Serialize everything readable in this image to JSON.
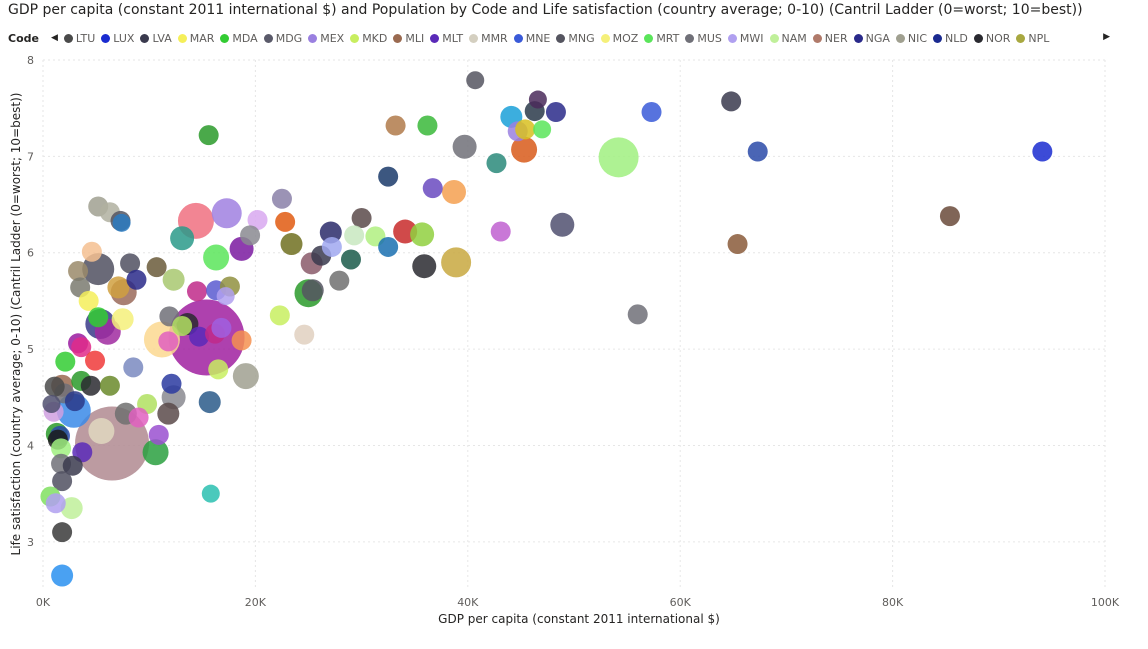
{
  "title": "GDP per capita (constant 2011 international $) and Population by Code and Life satisfaction (country average; 0-10) (Cantril Ladder (0=worst; 10=best))",
  "legend": {
    "label": "Code",
    "items": [
      {
        "code": "LTU",
        "color": "#4a4a4a"
      },
      {
        "code": "LUX",
        "color": "#1a2bd0"
      },
      {
        "code": "LVA",
        "color": "#3a3a4e"
      },
      {
        "code": "MAR",
        "color": "#f5ef5a"
      },
      {
        "code": "MDA",
        "color": "#33cc33"
      },
      {
        "code": "MDG",
        "color": "#5a5a6a"
      },
      {
        "code": "MEX",
        "color": "#9a80e0"
      },
      {
        "code": "MKD",
        "color": "#c8ee60"
      },
      {
        "code": "MLI",
        "color": "#9a6a50"
      },
      {
        "code": "MLT",
        "color": "#5a2ab8"
      },
      {
        "code": "MMR",
        "color": "#d4cfc0"
      },
      {
        "code": "MNE",
        "color": "#3a5ad8"
      },
      {
        "code": "MNG",
        "color": "#555560"
      },
      {
        "code": "MOZ",
        "color": "#f5f07a"
      },
      {
        "code": "MRT",
        "color": "#5ae55a"
      },
      {
        "code": "MUS",
        "color": "#707078"
      },
      {
        "code": "MWI",
        "color": "#b0a0f0"
      },
      {
        "code": "NAM",
        "color": "#c0f09a"
      },
      {
        "code": "NER",
        "color": "#b07a6a"
      },
      {
        "code": "NGA",
        "color": "#2a2a8a"
      },
      {
        "code": "NIC",
        "color": "#a0a090"
      },
      {
        "code": "NLD",
        "color": "#1a2a90"
      },
      {
        "code": "NOR",
        "color": "#2a2a30"
      },
      {
        "code": "NPL",
        "color": "#a8a840"
      }
    ]
  },
  "chart_data": {
    "type": "scatter",
    "xlabel": "GDP per capita (constant 2011 international $)",
    "ylabel": "Life satisfaction (country average; 0-10) (Cantril Ladder (0=worst; 10=best))",
    "xlim": [
      0,
      100000
    ],
    "ylim": [
      2.5,
      8
    ],
    "x_ticks": [
      0,
      20000,
      40000,
      60000,
      80000,
      100000
    ],
    "x_tick_labels": [
      "0K",
      "20K",
      "40K",
      "60K",
      "80K",
      "100K"
    ],
    "y_ticks": [
      3,
      4,
      5,
      6,
      7,
      8
    ],
    "y_tick_labels": [
      "3",
      "4",
      "5",
      "6",
      "7",
      "8"
    ],
    "grid": true,
    "size_encoding": "Population",
    "points": [
      {
        "x": 40700,
        "y": 7.79,
        "r": 9,
        "color": "#555560"
      },
      {
        "x": 46600,
        "y": 7.59,
        "r": 9,
        "color": "#4a2a5a"
      },
      {
        "x": 48300,
        "y": 7.46,
        "r": 10,
        "color": "#2a2a8a"
      },
      {
        "x": 46300,
        "y": 7.47,
        "r": 10,
        "color": "#2a3a4a"
      },
      {
        "x": 44100,
        "y": 7.41,
        "r": 11,
        "color": "#1aa0d8"
      },
      {
        "x": 57300,
        "y": 7.46,
        "r": 10,
        "color": "#3a5ad8"
      },
      {
        "x": 64800,
        "y": 7.57,
        "r": 10,
        "color": "#3a3a4e"
      },
      {
        "x": 15600,
        "y": 7.22,
        "r": 10,
        "color": "#2a9a2a"
      },
      {
        "x": 33200,
        "y": 7.32,
        "r": 10,
        "color": "#b07a4a"
      },
      {
        "x": 36200,
        "y": 7.32,
        "r": 10,
        "color": "#3ab83a"
      },
      {
        "x": 47000,
        "y": 7.28,
        "r": 9,
        "color": "#5ae55a"
      },
      {
        "x": 44700,
        "y": 7.26,
        "r": 10,
        "color": "#9a80e0"
      },
      {
        "x": 45400,
        "y": 7.28,
        "r": 10,
        "color": "#d8c020"
      },
      {
        "x": 39700,
        "y": 7.1,
        "r": 12,
        "color": "#707078"
      },
      {
        "x": 42700,
        "y": 6.93,
        "r": 10,
        "color": "#2a8a7a"
      },
      {
        "x": 45300,
        "y": 7.07,
        "r": 13,
        "color": "#d85a1a"
      },
      {
        "x": 54200,
        "y": 6.99,
        "r": 20,
        "color": "#a0f080"
      },
      {
        "x": 67300,
        "y": 7.05,
        "r": 10,
        "color": "#2a4aa8"
      },
      {
        "x": 94100,
        "y": 7.05,
        "r": 10,
        "color": "#1a2bd0"
      },
      {
        "x": 32500,
        "y": 6.79,
        "r": 10,
        "color": "#1a3a6a"
      },
      {
        "x": 36700,
        "y": 6.67,
        "r": 10,
        "color": "#6a4ac0"
      },
      {
        "x": 38700,
        "y": 6.63,
        "r": 12,
        "color": "#f5a050"
      },
      {
        "x": 22500,
        "y": 6.56,
        "r": 10,
        "color": "#8a80a8"
      },
      {
        "x": 17300,
        "y": 6.41,
        "r": 15,
        "color": "#a080e0"
      },
      {
        "x": 14400,
        "y": 6.33,
        "r": 18,
        "color": "#f07080"
      },
      {
        "x": 20200,
        "y": 6.34,
        "r": 10,
        "color": "#d8a8f0"
      },
      {
        "x": 22800,
        "y": 6.32,
        "r": 10,
        "color": "#e05a10"
      },
      {
        "x": 30000,
        "y": 6.36,
        "r": 10,
        "color": "#5a4a4a"
      },
      {
        "x": 48900,
        "y": 6.29,
        "r": 12,
        "color": "#505070"
      },
      {
        "x": 85400,
        "y": 6.38,
        "r": 10,
        "color": "#6a4a3a"
      },
      {
        "x": 27100,
        "y": 6.21,
        "r": 11,
        "color": "#2a2a6a"
      },
      {
        "x": 29300,
        "y": 6.18,
        "r": 10,
        "color": "#c8e8c0"
      },
      {
        "x": 31300,
        "y": 6.17,
        "r": 10,
        "color": "#b0f080"
      },
      {
        "x": 34100,
        "y": 6.22,
        "r": 12,
        "color": "#c82a2a"
      },
      {
        "x": 35700,
        "y": 6.19,
        "r": 12,
        "color": "#90d040"
      },
      {
        "x": 43100,
        "y": 6.22,
        "r": 10,
        "color": "#c060d0"
      },
      {
        "x": 65400,
        "y": 6.09,
        "r": 10,
        "color": "#8a5a3a"
      },
      {
        "x": 13100,
        "y": 6.15,
        "r": 12,
        "color": "#2a9a8a"
      },
      {
        "x": 19500,
        "y": 6.18,
        "r": 10,
        "color": "#8a8a90"
      },
      {
        "x": 18700,
        "y": 6.04,
        "r": 12,
        "color": "#7a1aa0"
      },
      {
        "x": 23400,
        "y": 6.09,
        "r": 11,
        "color": "#707020"
      },
      {
        "x": 26200,
        "y": 5.97,
        "r": 10,
        "color": "#3a3a4e"
      },
      {
        "x": 27200,
        "y": 6.06,
        "r": 10,
        "color": "#a0a8f0"
      },
      {
        "x": 25300,
        "y": 5.89,
        "r": 11,
        "color": "#8a5a6a"
      },
      {
        "x": 29000,
        "y": 5.93,
        "r": 10,
        "color": "#1a5a4a"
      },
      {
        "x": 32500,
        "y": 6.06,
        "r": 10,
        "color": "#1a70b0"
      },
      {
        "x": 35900,
        "y": 5.86,
        "r": 12,
        "color": "#2a2a30"
      },
      {
        "x": 38900,
        "y": 5.9,
        "r": 15,
        "color": "#c8a840"
      },
      {
        "x": 16300,
        "y": 5.95,
        "r": 13,
        "color": "#5ae55a"
      },
      {
        "x": 5200,
        "y": 6.48,
        "r": 10,
        "color": "#a0a090"
      },
      {
        "x": 6300,
        "y": 6.42,
        "r": 10,
        "color": "#b0b0a0"
      },
      {
        "x": 7300,
        "y": 6.33,
        "r": 10,
        "color": "#555560"
      },
      {
        "x": 7400,
        "y": 6.31,
        "r": 9,
        "color": "#2a7ac0"
      },
      {
        "x": 4600,
        "y": 6.01,
        "r": 10,
        "color": "#f5c090"
      },
      {
        "x": 3300,
        "y": 5.81,
        "r": 10,
        "color": "#9a8a6a"
      },
      {
        "x": 5200,
        "y": 5.83,
        "r": 16,
        "color": "#505060"
      },
      {
        "x": 8200,
        "y": 5.89,
        "r": 10,
        "color": "#505060"
      },
      {
        "x": 10700,
        "y": 5.85,
        "r": 10,
        "color": "#6a5a3a"
      },
      {
        "x": 8800,
        "y": 5.72,
        "r": 10,
        "color": "#2a2a8a"
      },
      {
        "x": 12300,
        "y": 5.72,
        "r": 11,
        "color": "#a8c870"
      },
      {
        "x": 3500,
        "y": 5.64,
        "r": 10,
        "color": "#7a7a70"
      },
      {
        "x": 7600,
        "y": 5.59,
        "r": 13,
        "color": "#9a6a5a"
      },
      {
        "x": 7100,
        "y": 5.64,
        "r": 11,
        "color": "#d0a040"
      },
      {
        "x": 14500,
        "y": 5.6,
        "r": 10,
        "color": "#c02a8a"
      },
      {
        "x": 16300,
        "y": 5.61,
        "r": 10,
        "color": "#5a5ad0"
      },
      {
        "x": 17200,
        "y": 5.55,
        "r": 9,
        "color": "#b0a0f0"
      },
      {
        "x": 17600,
        "y": 5.65,
        "r": 10,
        "color": "#909040"
      },
      {
        "x": 25000,
        "y": 5.58,
        "r": 14,
        "color": "#2a9a2a"
      },
      {
        "x": 25400,
        "y": 5.61,
        "r": 11,
        "color": "#555560"
      },
      {
        "x": 27900,
        "y": 5.71,
        "r": 10,
        "color": "#707070"
      },
      {
        "x": 56000,
        "y": 5.36,
        "r": 10,
        "color": "#707078"
      },
      {
        "x": 22300,
        "y": 5.35,
        "r": 10,
        "color": "#c8ee60"
      },
      {
        "x": 24600,
        "y": 5.15,
        "r": 10,
        "color": "#e0d0c0"
      },
      {
        "x": 4300,
        "y": 5.5,
        "r": 10,
        "color": "#f5ef5a"
      },
      {
        "x": 5200,
        "y": 5.33,
        "r": 10,
        "color": "#33cc33"
      },
      {
        "x": 5400,
        "y": 5.26,
        "r": 15,
        "color": "#3a3a8a"
      },
      {
        "x": 6100,
        "y": 5.18,
        "r": 13,
        "color": "#a02aa0"
      },
      {
        "x": 7500,
        "y": 5.31,
        "r": 11,
        "color": "#f5f07a"
      },
      {
        "x": 3300,
        "y": 5.06,
        "r": 10,
        "color": "#9a1aa0"
      },
      {
        "x": 3600,
        "y": 5.02,
        "r": 10,
        "color": "#e02a8a"
      },
      {
        "x": 11200,
        "y": 5.1,
        "r": 18,
        "color": "#fbd890"
      },
      {
        "x": 11900,
        "y": 5.34,
        "r": 10,
        "color": "#707078"
      },
      {
        "x": 13100,
        "y": 5.24,
        "r": 10,
        "color": "#b0e060"
      },
      {
        "x": 13600,
        "y": 5.26,
        "r": 11,
        "color": "#2a2a30"
      },
      {
        "x": 14700,
        "y": 5.13,
        "r": 10,
        "color": "#5a2ab8"
      },
      {
        "x": 15400,
        "y": 5.12,
        "r": 38,
        "color": "#a020a0"
      },
      {
        "x": 16200,
        "y": 5.16,
        "r": 10,
        "color": "#c02a8a"
      },
      {
        "x": 16800,
        "y": 5.22,
        "r": 10,
        "color": "#a060e0"
      },
      {
        "x": 11800,
        "y": 5.08,
        "r": 10,
        "color": "#e060c0"
      },
      {
        "x": 18700,
        "y": 5.09,
        "r": 10,
        "color": "#f59050"
      },
      {
        "x": 4900,
        "y": 4.88,
        "r": 10,
        "color": "#f03a3a"
      },
      {
        "x": 2100,
        "y": 4.87,
        "r": 10,
        "color": "#33cc33"
      },
      {
        "x": 8500,
        "y": 4.81,
        "r": 10,
        "color": "#7a8ac0"
      },
      {
        "x": 16500,
        "y": 4.79,
        "r": 10,
        "color": "#c8ee60"
      },
      {
        "x": 19100,
        "y": 4.72,
        "r": 13,
        "color": "#a0a090"
      },
      {
        "x": 1800,
        "y": 4.62,
        "r": 11,
        "color": "#9a6a50"
      },
      {
        "x": 3600,
        "y": 4.67,
        "r": 10,
        "color": "#2a9a2a"
      },
      {
        "x": 4500,
        "y": 4.62,
        "r": 10,
        "color": "#2a2a30"
      },
      {
        "x": 6300,
        "y": 4.62,
        "r": 10,
        "color": "#6a8a2a"
      },
      {
        "x": 2900,
        "y": 4.36,
        "r": 17,
        "color": "#3a8ae8"
      },
      {
        "x": 2000,
        "y": 4.54,
        "r": 10,
        "color": "#707078"
      },
      {
        "x": 3000,
        "y": 4.46,
        "r": 10,
        "color": "#2a3a8a"
      },
      {
        "x": 12100,
        "y": 4.64,
        "r": 10,
        "color": "#2a3aa0"
      },
      {
        "x": 12300,
        "y": 4.5,
        "r": 12,
        "color": "#8a8a90"
      },
      {
        "x": 15700,
        "y": 4.45,
        "r": 11,
        "color": "#2a5a8a"
      },
      {
        "x": 9800,
        "y": 4.43,
        "r": 10,
        "color": "#b0e060"
      },
      {
        "x": 1100,
        "y": 4.61,
        "r": 10,
        "color": "#4a4a4a"
      },
      {
        "x": 800,
        "y": 4.43,
        "r": 9,
        "color": "#505070"
      },
      {
        "x": 1000,
        "y": 4.35,
        "r": 10,
        "color": "#d0a0e0"
      },
      {
        "x": 7800,
        "y": 4.33,
        "r": 11,
        "color": "#707070"
      },
      {
        "x": 9000,
        "y": 4.29,
        "r": 10,
        "color": "#e060c0"
      },
      {
        "x": 11800,
        "y": 4.33,
        "r": 11,
        "color": "#5a4a4a"
      },
      {
        "x": 1300,
        "y": 4.12,
        "r": 11,
        "color": "#2a9a2a"
      },
      {
        "x": 1600,
        "y": 4.1,
        "r": 10,
        "color": "#2a4aa8"
      },
      {
        "x": 1400,
        "y": 4.06,
        "r": 10,
        "color": "#1a1a1a"
      },
      {
        "x": 6500,
        "y": 4.02,
        "r": 37,
        "color": "#b08a90"
      },
      {
        "x": 5500,
        "y": 4.15,
        "r": 13,
        "color": "#e0d8c0"
      },
      {
        "x": 10900,
        "y": 4.11,
        "r": 10,
        "color": "#9a50d0"
      },
      {
        "x": 1700,
        "y": 3.97,
        "r": 10,
        "color": "#a0f080"
      },
      {
        "x": 3700,
        "y": 3.93,
        "r": 10,
        "color": "#5a2ab8"
      },
      {
        "x": 10600,
        "y": 3.93,
        "r": 13,
        "color": "#2aa040"
      },
      {
        "x": 1700,
        "y": 3.81,
        "r": 10,
        "color": "#707078"
      },
      {
        "x": 2800,
        "y": 3.79,
        "r": 10,
        "color": "#3a3a4e"
      },
      {
        "x": 1800,
        "y": 3.63,
        "r": 10,
        "color": "#505060"
      },
      {
        "x": 700,
        "y": 3.47,
        "r": 10,
        "color": "#80e060"
      },
      {
        "x": 1200,
        "y": 3.4,
        "r": 10,
        "color": "#b0a0f0"
      },
      {
        "x": 2700,
        "y": 3.35,
        "r": 11,
        "color": "#c0f09a"
      },
      {
        "x": 15800,
        "y": 3.5,
        "r": 9,
        "color": "#2ac0b0"
      },
      {
        "x": 1800,
        "y": 3.1,
        "r": 10,
        "color": "#3a3a3a"
      },
      {
        "x": 1800,
        "y": 2.65,
        "r": 11,
        "color": "#2a90f0"
      }
    ]
  }
}
